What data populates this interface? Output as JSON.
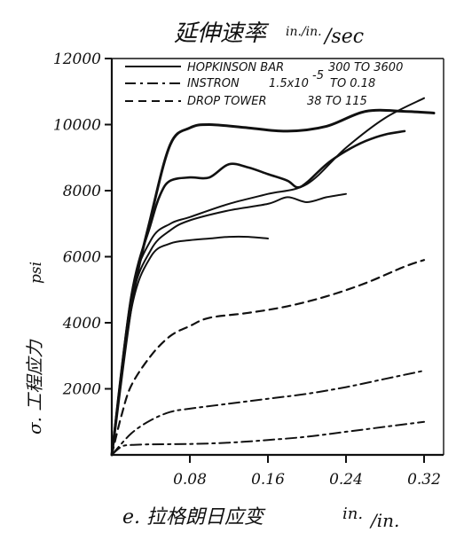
{
  "chart_data": {
    "type": "line",
    "title": "延伸速率",
    "title_units_top": "in./in.",
    "title_units_bottom": "/sec",
    "xlabel": "e. 拉格朗日应变",
    "xlabel_units_top": "in.",
    "xlabel_units_bottom": "/in.",
    "ylabel": "σ. 工程应力",
    "ylabel_units": "psi",
    "xlim": [
      0,
      0.34
    ],
    "ylim": [
      0,
      12000
    ],
    "xticks": [
      "0.08",
      "0.16",
      "0.24",
      "0.32"
    ],
    "xtick_values": [
      0.08,
      0.16,
      0.24,
      0.32
    ],
    "yticks": [
      "2000",
      "4000",
      "6000",
      "8000",
      "10000",
      "12000"
    ],
    "ytick_values": [
      2000,
      4000,
      6000,
      8000,
      10000,
      12000
    ],
    "grid": false,
    "legend_position": "top",
    "legend": [
      {
        "label": "HOPKINSON BAR",
        "rate": "300 TO 3600",
        "style": "solid"
      },
      {
        "label": "INSTRON",
        "rate": "1.5x10",
        "rate_exp": "-5",
        "rate_tail": "TO 0.18",
        "style": "dashdot"
      },
      {
        "label": "DROP TOWER",
        "rate": "38 TO 115",
        "style": "dashed"
      }
    ],
    "series": [
      {
        "style": "solid",
        "width": 3,
        "points": [
          [
            0,
            0
          ],
          [
            0.02,
            4500
          ],
          [
            0.04,
            7200
          ],
          [
            0.06,
            9400
          ],
          [
            0.08,
            9900
          ],
          [
            0.1,
            10000
          ],
          [
            0.14,
            9900
          ],
          [
            0.18,
            9800
          ],
          [
            0.22,
            9950
          ],
          [
            0.26,
            10400
          ],
          [
            0.3,
            10400
          ],
          [
            0.33,
            10350
          ]
        ]
      },
      {
        "style": "solid",
        "width": 2.6,
        "points": [
          [
            0,
            0
          ],
          [
            0.02,
            4800
          ],
          [
            0.04,
            7000
          ],
          [
            0.05,
            7900
          ],
          [
            0.06,
            8300
          ],
          [
            0.08,
            8400
          ],
          [
            0.1,
            8400
          ],
          [
            0.12,
            8800
          ],
          [
            0.14,
            8700
          ],
          [
            0.16,
            8500
          ],
          [
            0.18,
            8300
          ],
          [
            0.19,
            8100
          ],
          [
            0.2,
            8250
          ],
          [
            0.22,
            8800
          ],
          [
            0.24,
            9200
          ],
          [
            0.26,
            9500
          ],
          [
            0.28,
            9700
          ],
          [
            0.3,
            9800
          ]
        ]
      },
      {
        "style": "solid",
        "width": 2,
        "points": [
          [
            0,
            0
          ],
          [
            0.02,
            4800
          ],
          [
            0.04,
            6500
          ],
          [
            0.06,
            7000
          ],
          [
            0.08,
            7200
          ],
          [
            0.12,
            7600
          ],
          [
            0.16,
            7900
          ],
          [
            0.2,
            8200
          ],
          [
            0.24,
            9300
          ],
          [
            0.28,
            10200
          ],
          [
            0.32,
            10800
          ]
        ]
      },
      {
        "style": "solid",
        "width": 2,
        "points": [
          [
            0,
            0
          ],
          [
            0.02,
            4600
          ],
          [
            0.04,
            6200
          ],
          [
            0.06,
            6800
          ],
          [
            0.08,
            7100
          ],
          [
            0.12,
            7400
          ],
          [
            0.16,
            7600
          ],
          [
            0.18,
            7800
          ],
          [
            0.2,
            7650
          ],
          [
            0.22,
            7800
          ],
          [
            0.24,
            7900
          ]
        ]
      },
      {
        "style": "solid",
        "width": 2,
        "points": [
          [
            0,
            0
          ],
          [
            0.02,
            4400
          ],
          [
            0.04,
            6000
          ],
          [
            0.06,
            6400
          ],
          [
            0.08,
            6500
          ],
          [
            0.1,
            6550
          ],
          [
            0.12,
            6600
          ],
          [
            0.14,
            6600
          ],
          [
            0.16,
            6550
          ]
        ]
      },
      {
        "style": "dashed",
        "width": 2.2,
        "points": [
          [
            0,
            0
          ],
          [
            0.01,
            1200
          ],
          [
            0.02,
            2100
          ],
          [
            0.04,
            3000
          ],
          [
            0.06,
            3600
          ],
          [
            0.08,
            3900
          ],
          [
            0.1,
            4150
          ],
          [
            0.14,
            4300
          ],
          [
            0.18,
            4500
          ],
          [
            0.22,
            4800
          ],
          [
            0.26,
            5200
          ],
          [
            0.3,
            5700
          ],
          [
            0.32,
            5900
          ]
        ]
      },
      {
        "style": "dashdot",
        "width": 2,
        "points": [
          [
            0,
            0
          ],
          [
            0.02,
            650
          ],
          [
            0.04,
            1050
          ],
          [
            0.06,
            1300
          ],
          [
            0.08,
            1400
          ],
          [
            0.12,
            1550
          ],
          [
            0.16,
            1700
          ],
          [
            0.2,
            1850
          ],
          [
            0.24,
            2050
          ],
          [
            0.28,
            2300
          ],
          [
            0.32,
            2550
          ]
        ]
      },
      {
        "style": "dashdot",
        "width": 2,
        "points": [
          [
            0,
            0
          ],
          [
            0.01,
            250
          ],
          [
            0.02,
            300
          ],
          [
            0.04,
            320
          ],
          [
            0.08,
            330
          ],
          [
            0.12,
            370
          ],
          [
            0.16,
            450
          ],
          [
            0.2,
            550
          ],
          [
            0.24,
            700
          ],
          [
            0.28,
            850
          ],
          [
            0.32,
            1000
          ]
        ]
      }
    ]
  }
}
